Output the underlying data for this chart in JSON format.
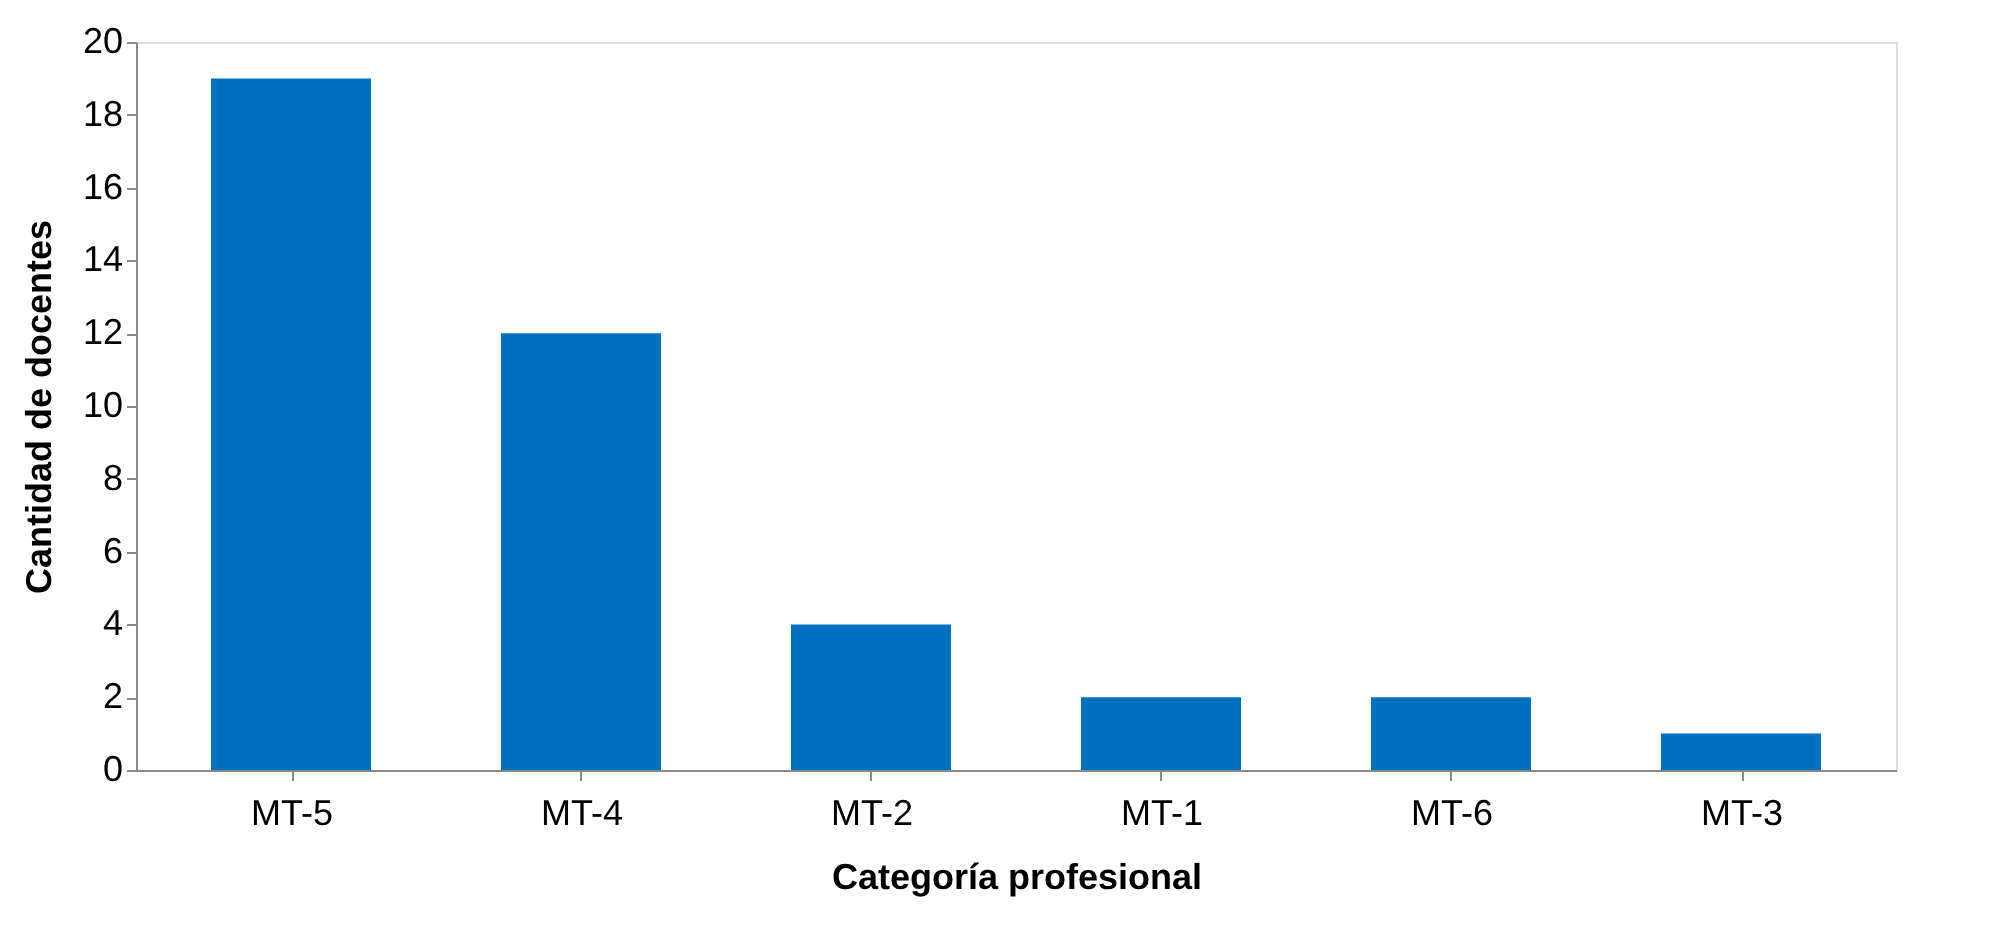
{
  "chart_data": {
    "type": "bar",
    "xlabel": "Categoría profesional",
    "ylabel": "Cantidad de docentes",
    "categories": [
      "MT-5",
      "MT-4",
      "MT-2",
      "MT-1",
      "MT-6",
      "MT-3"
    ],
    "values": [
      19,
      12,
      4,
      2,
      2,
      1
    ],
    "color": "#0070c0",
    "ylim": [
      0,
      20
    ],
    "yticks": [
      0,
      2,
      4,
      6,
      8,
      10,
      12,
      14,
      16,
      18,
      20
    ],
    "grid": false
  }
}
